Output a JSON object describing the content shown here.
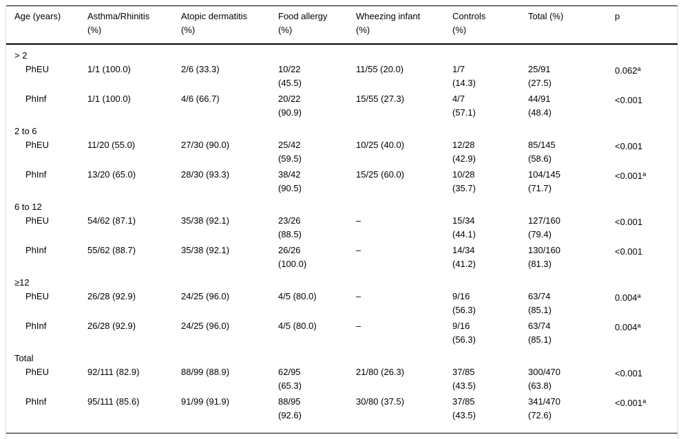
{
  "table": {
    "headers": [
      "Age (years)",
      "Asthma/Rhinitis\n(%)",
      "Atopic dermatitis\n(%)",
      "Food allergy\n(%)",
      "Wheezing infant\n(%)",
      "Controls\n(%)",
      "Total (%)",
      "p"
    ],
    "groups": [
      {
        "label": "> 2",
        "rows": [
          {
            "label": "PhEU",
            "cells": [
              "1/1 (100.0)",
              "2/6 (33.3)",
              "10/22\n(45.5)",
              "11/55 (20.0)",
              "1/7\n(14.3)",
              "25/91\n(27.5)"
            ],
            "p": "0.062",
            "p_sup": "a"
          },
          {
            "label": "PhInf",
            "cells": [
              "1/1 (100.0)",
              "4/6 (66.7)",
              "20/22\n(90.9)",
              "15/55 (27.3)",
              "4/7\n(57.1)",
              "44/91\n(48.4)"
            ],
            "p": "<0.001",
            "p_sup": ""
          }
        ]
      },
      {
        "label": "2 to 6",
        "rows": [
          {
            "label": "PhEU",
            "cells": [
              "11/20 (55.0)",
              "27/30 (90.0)",
              "25/42\n(59.5)",
              "10/25 (40.0)",
              "12/28\n(42.9)",
              "85/145\n(58.6)"
            ],
            "p": "<0.001",
            "p_sup": ""
          },
          {
            "label": "PhInf",
            "cells": [
              "13/20 (65.0)",
              "28/30 (93.3)",
              "38/42\n(90.5)",
              "15/25 (60.0)",
              "10/28\n(35.7)",
              "104/145\n(71.7)"
            ],
            "p": "<0.001",
            "p_sup": "a"
          }
        ]
      },
      {
        "label": "6 to 12",
        "rows": [
          {
            "label": "PhEU",
            "cells": [
              "54/62 (87.1)",
              "35/38 (92.1)",
              "23/26\n(88.5)",
              "–",
              "15/34\n(44.1)",
              "127/160\n(79.4)"
            ],
            "p": "<0.001",
            "p_sup": ""
          },
          {
            "label": "PhInf",
            "cells": [
              "55/62 (88.7)",
              "35/38 (92.1)",
              "26/26\n(100.0)",
              "–",
              "14/34\n(41.2)",
              "130/160\n(81.3)"
            ],
            "p": "<0.001",
            "p_sup": ""
          }
        ]
      },
      {
        "label": "≥12",
        "rows": [
          {
            "label": "PhEU",
            "cells": [
              "26/28 (92.9)",
              "24/25 (96.0)",
              "4/5 (80.0)",
              "–",
              "9/16\n(56.3)",
              "63/74\n(85.1)"
            ],
            "p": "0.004",
            "p_sup": "a"
          },
          {
            "label": "PhInf",
            "cells": [
              "26/28 (92.9)",
              "24/25 (96.0)",
              "4/5 (80.0)",
              "–",
              "9/16\n(56.3)",
              "63/74\n(85.1)"
            ],
            "p": "0.004",
            "p_sup": "a"
          }
        ]
      },
      {
        "label": "Total",
        "rows": [
          {
            "label": "PhEU",
            "cells": [
              "92/111 (82.9)",
              "88/99 (88.9)",
              "62/95\n(65.3)",
              "21/80 (26.3)",
              "37/85\n(43.5)",
              "300/470\n(63.8)"
            ],
            "p": "<0.001",
            "p_sup": ""
          },
          {
            "label": "PhInf",
            "cells": [
              "95/111 (85.6)",
              "91/99 (91.9)",
              "88/95\n(92.6)",
              "30/80 (37.5)",
              "37/85\n(43.5)",
              "341/470\n(72.6)"
            ],
            "p": "<0.001",
            "p_sup": "a"
          }
        ]
      }
    ]
  }
}
